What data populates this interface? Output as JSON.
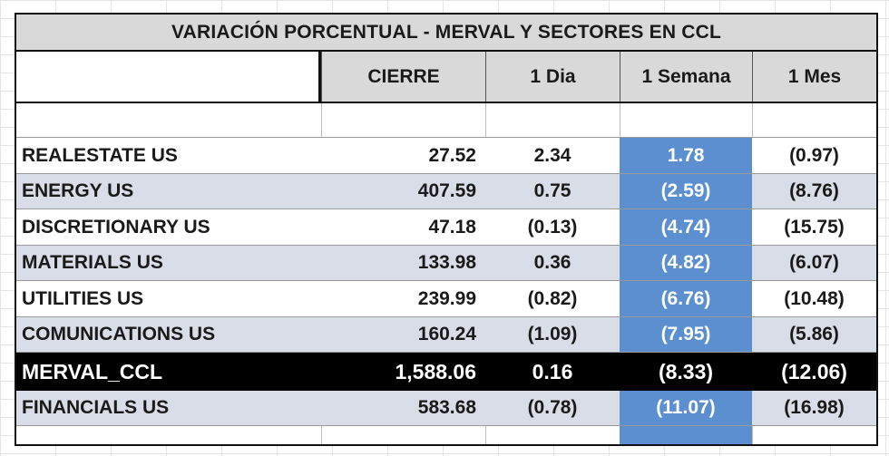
{
  "table": {
    "title": "VARIACIÓN PORCENTUAL  - MERVAL Y SECTORES EN CCL",
    "columns": [
      "",
      "CIERRE",
      "1 Dia",
      "1 Semana",
      "1 Mes"
    ],
    "rows": [
      {
        "name": "REALESTATE US",
        "cierre": "27.52",
        "dia": "2.34",
        "semana": "1.78",
        "mes": "(0.97)"
      },
      {
        "name": "ENERGY US",
        "cierre": "407.59",
        "dia": "0.75",
        "semana": "(2.59)",
        "mes": "(8.76)"
      },
      {
        "name": "DISCRETIONARY US",
        "cierre": "47.18",
        "dia": "(0.13)",
        "semana": "(4.74)",
        "mes": "(15.75)"
      },
      {
        "name": "MATERIALS US",
        "cierre": "133.98",
        "dia": "0.36",
        "semana": "(4.82)",
        "mes": "(6.07)"
      },
      {
        "name": "UTILITIES US",
        "cierre": "239.99",
        "dia": "(0.82)",
        "semana": "(6.76)",
        "mes": "(10.48)"
      },
      {
        "name": "COMUNICATIONS US",
        "cierre": "160.24",
        "dia": "(1.09)",
        "semana": "(7.95)",
        "mes": "(5.86)"
      },
      {
        "name": "MERVAL_CCL",
        "cierre": "1,588.06",
        "dia": "0.16",
        "semana": "(8.33)",
        "mes": "(12.06)"
      },
      {
        "name": "FINANCIALS US",
        "cierre": "583.68",
        "dia": "(0.78)",
        "semana": "(11.07)",
        "mes": "(16.98)"
      }
    ]
  },
  "colors": {
    "header_fill": "#d9d9d9",
    "shaded_row": "#d9dde8",
    "highlight_column": "#5b8fd0",
    "highlight_row": "#000000"
  }
}
